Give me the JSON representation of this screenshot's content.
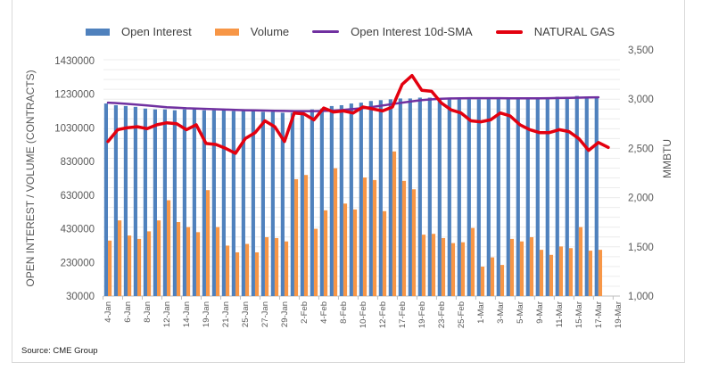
{
  "chart_data": {
    "type": "bar",
    "title": "",
    "legend": {
      "position": "top",
      "entries": [
        {
          "name": "Open Interest",
          "kind": "bar",
          "color": "#4f81bd"
        },
        {
          "name": "Volume",
          "kind": "bar",
          "color": "#f79646"
        },
        {
          "name": "Open Interest 10d-SMA",
          "kind": "line",
          "color": "#7030a0"
        },
        {
          "name": "NATURAL GAS",
          "kind": "line",
          "color": "#e3000f"
        }
      ]
    },
    "xlabel": "",
    "ylabel": "OPEN INTEREST / VOLUME (CONTRACTS)",
    "y2label": "MMBTU",
    "ylim": [
      30000,
      1430000
    ],
    "y2lim": [
      1000,
      3500
    ],
    "yticks": [
      "1430000",
      "1230000",
      "1030000",
      "830000",
      "630000",
      "430000",
      "230000",
      "30000"
    ],
    "y2ticks": [
      "3,500",
      "3,000",
      "2,500",
      "2,000",
      "1,500",
      "1,000"
    ],
    "xtick_labels": [
      "4-Jan",
      "6-Jan",
      "8-Jan",
      "12-Jan",
      "14-Jan",
      "19-Jan",
      "21-Jan",
      "25-Jan",
      "27-Jan",
      "29-Jan",
      "2-Feb",
      "4-Feb",
      "8-Feb",
      "10-Feb",
      "12-Feb",
      "17-Feb",
      "19-Feb",
      "23-Feb",
      "25-Feb",
      "1-Mar",
      "3-Mar",
      "5-Mar",
      "9-Mar",
      "11-Mar",
      "15-Mar",
      "17-Mar",
      "19-Mar"
    ],
    "categories": [
      "4-Jan",
      "5-Jan",
      "6-Jan",
      "7-Jan",
      "8-Jan",
      "11-Jan",
      "12-Jan",
      "13-Jan",
      "14-Jan",
      "15-Jan",
      "19-Jan",
      "20-Jan",
      "21-Jan",
      "22-Jan",
      "25-Jan",
      "26-Jan",
      "27-Jan",
      "28-Jan",
      "29-Jan",
      "1-Feb",
      "2-Feb",
      "3-Feb",
      "4-Feb",
      "5-Feb",
      "8-Feb",
      "9-Feb",
      "10-Feb",
      "11-Feb",
      "12-Feb",
      "16-Feb",
      "17-Feb",
      "18-Feb",
      "19-Feb",
      "22-Feb",
      "23-Feb",
      "24-Feb",
      "25-Feb",
      "26-Feb",
      "1-Mar",
      "2-Mar",
      "3-Mar",
      "4-Mar",
      "5-Mar",
      "8-Mar",
      "9-Mar",
      "10-Mar",
      "11-Mar",
      "12-Mar",
      "15-Mar",
      "16-Mar",
      "17-Mar",
      "18-Mar",
      "19-Mar"
    ],
    "series": [
      {
        "name": "Open Interest",
        "type": "bar",
        "axis": "left",
        "values": [
          1175000,
          1165000,
          1160000,
          1155000,
          1145000,
          1140000,
          1140000,
          1135000,
          1140000,
          1140000,
          1135000,
          1135000,
          1135000,
          1130000,
          1130000,
          1135000,
          1125000,
          1125000,
          1120000,
          1120000,
          1125000,
          1140000,
          1145000,
          1160000,
          1165000,
          1175000,
          1180000,
          1190000,
          1195000,
          1200000,
          1205000,
          1205000,
          1210000,
          1210000,
          1205000,
          1205000,
          1205000,
          1205000,
          1200000,
          1205000,
          1205000,
          1205000,
          1205000,
          1205000,
          1205000,
          1210000,
          1215000,
          1215000,
          1220000,
          1215000,
          1210000,
          null,
          null
        ]
      },
      {
        "name": "Volume",
        "type": "bar",
        "axis": "left",
        "values": [
          360000,
          480000,
          390000,
          370000,
          415000,
          480000,
          600000,
          470000,
          440000,
          410000,
          660000,
          440000,
          330000,
          290000,
          340000,
          290000,
          380000,
          375000,
          355000,
          725000,
          750000,
          430000,
          540000,
          790000,
          580000,
          545000,
          735000,
          720000,
          535000,
          890000,
          715000,
          665000,
          395000,
          400000,
          375000,
          345000,
          350000,
          435000,
          205000,
          260000,
          215000,
          370000,
          355000,
          380000,
          305000,
          275000,
          325000,
          315000,
          440000,
          300000,
          305000,
          null,
          null
        ]
      },
      {
        "name": "Open Interest 10d-SMA",
        "type": "line",
        "axis": "left",
        "values": [
          1180000,
          1177000,
          1173000,
          1168000,
          1163000,
          1158000,
          1153000,
          1150000,
          1147000,
          1145000,
          1143000,
          1141000,
          1139000,
          1137000,
          1135000,
          1134000,
          1133000,
          1132000,
          1131000,
          1130000,
          1130000,
          1130000,
          1131000,
          1133000,
          1137000,
          1142000,
          1148000,
          1155000,
          1163000,
          1172000,
          1180000,
          1188000,
          1195000,
          1200000,
          1203000,
          1205000,
          1206000,
          1207000,
          1207000,
          1207000,
          1207000,
          1206000,
          1206000,
          1206000,
          1206000,
          1207000,
          1208000,
          1209000,
          1210000,
          1211000,
          1212000,
          null,
          null
        ]
      },
      {
        "name": "NATURAL GAS",
        "type": "line",
        "axis": "right",
        "values": [
          2570,
          2690,
          2710,
          2720,
          2700,
          2740,
          2760,
          2750,
          2690,
          2740,
          2550,
          2540,
          2500,
          2450,
          2600,
          2660,
          2780,
          2720,
          2570,
          2860,
          2850,
          2790,
          2910,
          2870,
          2880,
          2860,
          2920,
          2900,
          2880,
          2920,
          3150,
          3240,
          3090,
          3080,
          2960,
          2890,
          2860,
          2780,
          2770,
          2790,
          2860,
          2830,
          2740,
          2690,
          2660,
          2660,
          2690,
          2670,
          2600,
          2480,
          2560,
          2510,
          null
        ]
      }
    ]
  },
  "source_note": "Source: CME Group"
}
